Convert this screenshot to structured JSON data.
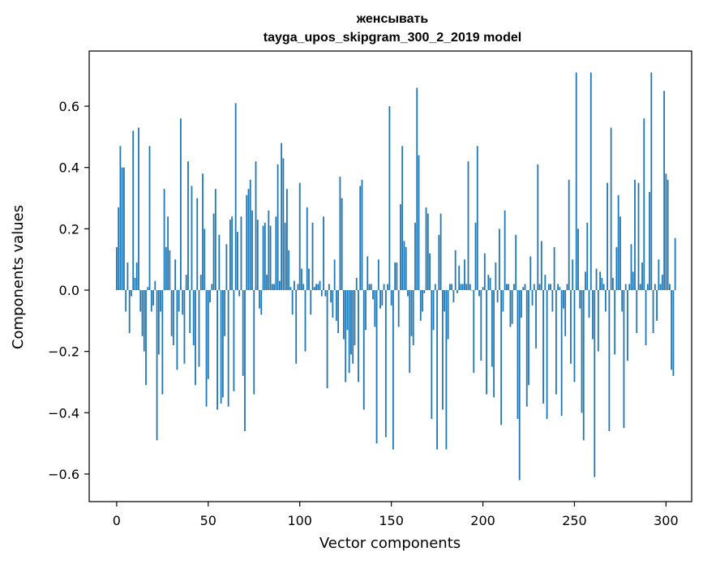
{
  "chart_data": {
    "type": "bar",
    "title": "женсывать",
    "subtitle": "tayga_upos_skipgram_300_2_2019 model",
    "xlabel": "Vector components",
    "ylabel": "Components values",
    "xlim": [
      -15,
      314
    ],
    "ylim": [
      -0.69,
      0.78
    ],
    "xticks": [
      0,
      50,
      100,
      150,
      200,
      250,
      300
    ],
    "yticks": [
      -0.6,
      -0.4,
      -0.2,
      0.0,
      0.2,
      0.4,
      0.6
    ],
    "ytick_labels": [
      "−0.6",
      "−0.4",
      "−0.2",
      "0.0",
      "0.2",
      "0.4",
      "0.6"
    ],
    "xtick_labels": [
      "0",
      "50",
      "100",
      "150",
      "200",
      "250",
      "300"
    ],
    "bar_color": "#1f77b4",
    "grid": false,
    "values": [
      0.14,
      0.27,
      0.47,
      0.4,
      0.4,
      -0.07,
      0.09,
      -0.14,
      -0.02,
      0.52,
      0.04,
      0.09,
      0.53,
      -0.07,
      -0.15,
      -0.2,
      -0.31,
      0.01,
      0.47,
      -0.07,
      -0.05,
      0.03,
      -0.49,
      -0.21,
      -0.07,
      -0.34,
      0.33,
      0.14,
      0.24,
      0.13,
      -0.15,
      -0.18,
      0.1,
      -0.26,
      -0.07,
      0.56,
      -0.08,
      -0.24,
      0.05,
      0.42,
      -0.14,
      0.34,
      -0.18,
      -0.31,
      0.3,
      -0.25,
      0.05,
      0.38,
      0.2,
      -0.38,
      -0.29,
      -0.04,
      0.02,
      0.25,
      0.33,
      -0.39,
      0.18,
      -0.37,
      -0.35,
      -0.15,
      0.15,
      -0.38,
      0.23,
      0.24,
      -0.33,
      0.61,
      0.19,
      -0.02,
      0.24,
      -0.28,
      -0.46,
      0.31,
      0.33,
      0.36,
      0.26,
      -0.34,
      0.42,
      0.23,
      -0.06,
      -0.08,
      0.21,
      0.22,
      0.05,
      0.26,
      0.21,
      0.02,
      0.02,
      0.24,
      0.41,
      0.03,
      0.48,
      0.43,
      0.22,
      0.33,
      0.13,
      0.01,
      -0.08,
      0.03,
      -0.24,
      0.02,
      0.35,
      0.07,
      0.02,
      -0.2,
      0.27,
      0.07,
      -0.08,
      0.22,
      0.01,
      0.02,
      0.02,
      0.03,
      -0.02,
      0.24,
      -0.02,
      -0.32,
      0.02,
      -0.04,
      -0.09,
      0.1,
      -0.1,
      -0.14,
      0.37,
      0.3,
      -0.16,
      -0.3,
      -0.13,
      -0.27,
      -0.21,
      -0.24,
      -0.18,
      0.04,
      -0.3,
      0.34,
      0.36,
      -0.39,
      -0.13,
      0.11,
      0.02,
      0.02,
      -0.03,
      -0.12,
      -0.5,
      0.1,
      -0.06,
      -0.05,
      0.02,
      -0.48,
      0.02,
      0.6,
      -0.05,
      -0.52,
      0.09,
      0.09,
      -0.12,
      0.28,
      0.47,
      0.16,
      0.14,
      -0.02,
      -0.27,
      -0.15,
      -0.18,
      0.22,
      0.66,
      0.44,
      -0.1,
      -0.07,
      -0.01,
      0.27,
      0.25,
      0.12,
      -0.42,
      -0.13,
      0.02,
      -0.52,
      0.18,
      0.25,
      -0.39,
      -0.07,
      -0.52,
      -0.16,
      0.02,
      0.02,
      -0.04,
      0.13,
      -0.01,
      0.08,
      0.02,
      0.02,
      0.1,
      0.02,
      0.42,
      0.02,
      0.0,
      -0.27,
      0.22,
      0.47,
      -0.02,
      -0.23,
      0.01,
      0.12,
      -0.34,
      0.05,
      0.04,
      -0.25,
      -0.35,
      0.09,
      -0.04,
      0.2,
      -0.44,
      -0.07,
      0.26,
      0.02,
      0.02,
      -0.12,
      -0.11,
      0.02,
      0.18,
      -0.42,
      -0.62,
      -0.09,
      0.01,
      0.02,
      -0.38,
      -0.31,
      0.11,
      -0.05,
      0.02,
      -0.19,
      0.41,
      0.02,
      0.16,
      -0.37,
      0.05,
      -0.42,
      0.02,
      0.02,
      -0.07,
      0.14,
      -0.34,
      0.02,
      0.01,
      -0.41,
      -0.06,
      -0.15,
      0.02,
      0.36,
      -0.24,
      0.1,
      -0.3,
      0.71,
      0.2,
      -0.06,
      -0.4,
      -0.49,
      0.06,
      0.22,
      -0.09,
      0.71,
      -0.16,
      -0.61,
      0.07,
      -0.2,
      0.06,
      0.04,
      0.02,
      -0.07,
      0.35,
      -0.46,
      0.53,
      0.04,
      -0.21,
      0.14,
      0.31,
      0.24,
      -0.07,
      -0.45,
      0.02,
      -0.23,
      0.02,
      0.15,
      0.06,
      0.36,
      -0.14,
      0.35,
      0.02,
      0.09,
      0.56,
      -0.18,
      0.02,
      0.32,
      0.71,
      -0.14,
      0.02,
      -0.1,
      0.1,
      0.02,
      0.05,
      0.65,
      0.38,
      0.36,
      0.02,
      -0.26,
      -0.28,
      0.17
    ]
  }
}
